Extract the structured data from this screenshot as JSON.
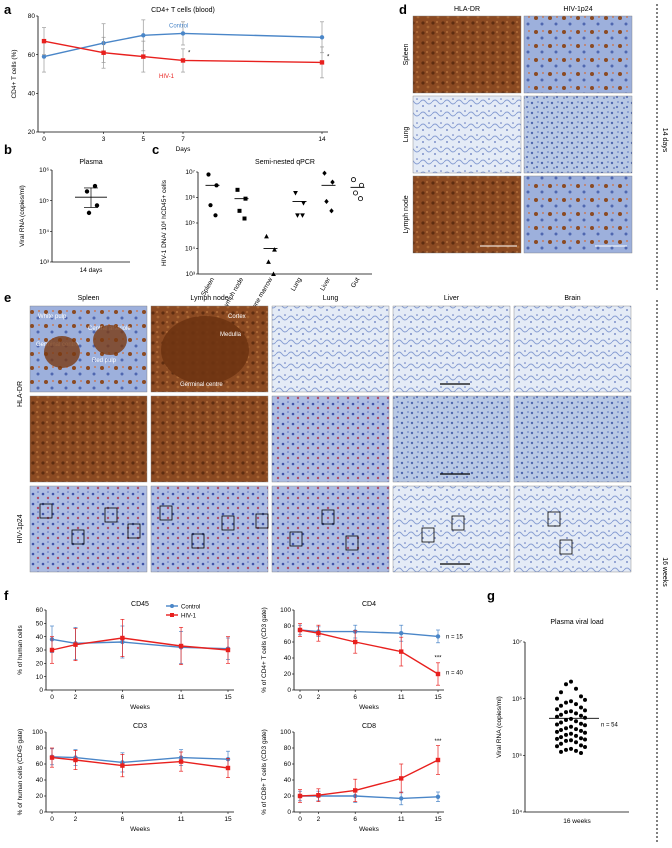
{
  "panels": {
    "a": "a",
    "b": "b",
    "c": "c",
    "d": "d",
    "e": "e",
    "f": "f",
    "g": "g"
  },
  "colors": {
    "control": "#4a86c8",
    "hiv": "#e8201e",
    "grid": "#000000"
  },
  "side_labels": {
    "top": "14 days",
    "bottom": "16 weeks"
  },
  "chart_data": [
    {
      "id": "a",
      "type": "line",
      "title": "CD4+ T cells (blood)",
      "xlabel": "Days",
      "ylabel": "CD4+ T cells (%)",
      "x": [
        0,
        3,
        5,
        7,
        14
      ],
      "xticks": [
        "0",
        "3",
        "5",
        "7",
        "14"
      ],
      "ylim": [
        20,
        80
      ],
      "yticks": [
        "20",
        "40",
        "60",
        "80"
      ],
      "series": [
        {
          "name": "Control",
          "values": [
            59,
            66,
            70,
            71,
            69
          ],
          "err": [
            8,
            10,
            8,
            6,
            8
          ]
        },
        {
          "name": "HIV-1",
          "values": [
            67,
            61,
            59,
            57,
            56
          ],
          "err": [
            7,
            8,
            8,
            6,
            8
          ]
        }
      ],
      "annotations": [
        "*",
        "*"
      ]
    },
    {
      "id": "b",
      "type": "scatter",
      "title": "Plasma",
      "ylabel": "Viral RNA (copies/ml)",
      "category": "14 days",
      "log": true,
      "yticks": [
        "10³",
        "10⁴",
        "10⁵",
        "10⁶"
      ],
      "points": [
        300000,
        200000,
        70000,
        40000
      ],
      "mean": 130000,
      "sem_low": 60000,
      "sem_high": 260000
    },
    {
      "id": "c",
      "type": "scatter",
      "title": "Semi-nested qPCR",
      "ylabel": "HIV-1 DNA/ 10⁶ hCD45+ cells",
      "log": true,
      "yticks": [
        "10³",
        "10⁴",
        "10⁵",
        "10⁶",
        "10⁷"
      ],
      "categories": [
        "Spleen",
        "Lymph node",
        "Bone marrow",
        "Lung",
        "Liver",
        "Gut"
      ],
      "markers": [
        "circle",
        "square",
        "triangle",
        "triangle-down",
        "diamond",
        "circle-open"
      ],
      "points": [
        [
          8000000,
          3000000,
          500000,
          200000
        ],
        [
          2000000,
          900000,
          300000,
          150000
        ],
        [
          30000,
          9000,
          3000,
          1000
        ],
        [
          1500000,
          600000,
          200000,
          200000
        ],
        [
          9000000,
          4000000,
          700000,
          300000
        ],
        [
          5000000,
          3000000,
          1500000,
          900000
        ]
      ],
      "means": [
        3000000,
        900000,
        10000,
        700000,
        3000000,
        2500000
      ]
    },
    {
      "id": "f-cd45",
      "type": "line",
      "title": "CD45",
      "xlabel": "Weeks",
      "ylabel": "% of human cells",
      "x": [
        0,
        2,
        6,
        11,
        15
      ],
      "xticks": [
        "0",
        "2",
        "6",
        "11",
        "15"
      ],
      "ylim": [
        0,
        60
      ],
      "yticks": [
        "0",
        "10",
        "20",
        "30",
        "40",
        "50",
        "60"
      ],
      "series": [
        {
          "name": "Control",
          "values": [
            38,
            35,
            36,
            32,
            31
          ],
          "err": [
            10,
            12,
            12,
            12,
            8
          ]
        },
        {
          "name": "HIV-1",
          "values": [
            30,
            34,
            39,
            33,
            30
          ],
          "err": [
            10,
            12,
            14,
            14,
            10
          ]
        }
      ]
    },
    {
      "id": "f-cd4",
      "type": "line",
      "title": "CD4",
      "xlabel": "Weeks",
      "ylabel": "% of CD4+ T cells (CD3 gate)",
      "x": [
        0,
        2,
        6,
        11,
        15
      ],
      "xticks": [
        "0",
        "2",
        "6",
        "11",
        "15"
      ],
      "ylim": [
        0,
        100
      ],
      "yticks": [
        "0",
        "20",
        "40",
        "60",
        "80",
        "100"
      ],
      "series": [
        {
          "name": "Control",
          "values": [
            75,
            73,
            73,
            71,
            67
          ],
          "err": [
            6,
            6,
            8,
            10,
            8
          ]
        },
        {
          "name": "HIV-1",
          "values": [
            75,
            71,
            60,
            48,
            20
          ],
          "err": [
            8,
            10,
            14,
            18,
            14
          ]
        }
      ],
      "n_labels": [
        "n = 15",
        "n = 40"
      ],
      "annotations": [
        "***"
      ]
    },
    {
      "id": "f-cd3",
      "type": "line",
      "title": "CD3",
      "xlabel": "Weeks",
      "ylabel": "% of human cells (CD45 gate)",
      "x": [
        0,
        2,
        6,
        11,
        15
      ],
      "xticks": [
        "0",
        "2",
        "6",
        "11",
        "15"
      ],
      "ylim": [
        0,
        100
      ],
      "yticks": [
        "0",
        "20",
        "40",
        "60",
        "80",
        "100"
      ],
      "series": [
        {
          "name": "Control",
          "values": [
            69,
            68,
            62,
            68,
            66
          ],
          "err": [
            10,
            10,
            12,
            10,
            10
          ]
        },
        {
          "name": "HIV-1",
          "values": [
            68,
            65,
            58,
            63,
            55
          ],
          "err": [
            12,
            12,
            14,
            12,
            12
          ]
        }
      ]
    },
    {
      "id": "f-cd8",
      "type": "line",
      "title": "CD8",
      "xlabel": "Weeks",
      "ylabel": "% of CD8+ T cells (CD3 gate)",
      "x": [
        0,
        2,
        6,
        11,
        15
      ],
      "xticks": [
        "0",
        "2",
        "6",
        "11",
        "15"
      ],
      "ylim": [
        0,
        100
      ],
      "yticks": [
        "0",
        "20",
        "40",
        "60",
        "80",
        "100"
      ],
      "series": [
        {
          "name": "Control",
          "values": [
            20,
            20,
            20,
            17,
            19
          ],
          "err": [
            6,
            6,
            8,
            8,
            6
          ]
        },
        {
          "name": "HIV-1",
          "values": [
            20,
            21,
            27,
            42,
            65
          ],
          "err": [
            8,
            8,
            14,
            18,
            18
          ]
        }
      ],
      "annotations": [
        "***"
      ]
    },
    {
      "id": "g",
      "type": "scatter",
      "title": "Plasma viral load",
      "ylabel": "Viral RNA (copies/ml)",
      "category": "16 weeks",
      "log": true,
      "yticks": [
        "10⁴",
        "10⁵",
        "10⁶",
        "10⁷"
      ],
      "mean": 450000,
      "n_label": "n = 54",
      "points": [
        2000000,
        1800000,
        1500000,
        1300000,
        1100000,
        1000000,
        950000,
        900000,
        850000,
        800000,
        750000,
        700000,
        650000,
        620000,
        600000,
        580000,
        550000,
        520000,
        500000,
        480000,
        460000,
        440000,
        420000,
        400000,
        380000,
        360000,
        350000,
        340000,
        320000,
        300000,
        290000,
        280000,
        270000,
        260000,
        250000,
        240000,
        230000,
        220000,
        210000,
        200000,
        195000,
        190000,
        185000,
        180000,
        170000,
        160000,
        150000,
        145000,
        140000,
        130000,
        125000,
        120000,
        115000,
        110000
      ]
    }
  ],
  "histology_d": {
    "columns": [
      "HLA-DR",
      "HIV-1p24"
    ],
    "rows": [
      "Spleen",
      "Lung",
      "Lymph node"
    ]
  },
  "histology_e": {
    "columns": [
      "Spleen",
      "Lymph node",
      "Lung",
      "Liver",
      "Brain"
    ],
    "rows": [
      "HLA-DR",
      "HIV-1p24"
    ],
    "spleen_labels": [
      "White pulp",
      "Central arteriole",
      "Germinal centre",
      "Red pulp"
    ],
    "lymph_labels": [
      "Cortex",
      "Medulla",
      "Germinal centre"
    ]
  },
  "legend": [
    "Control",
    "HIV-1"
  ]
}
